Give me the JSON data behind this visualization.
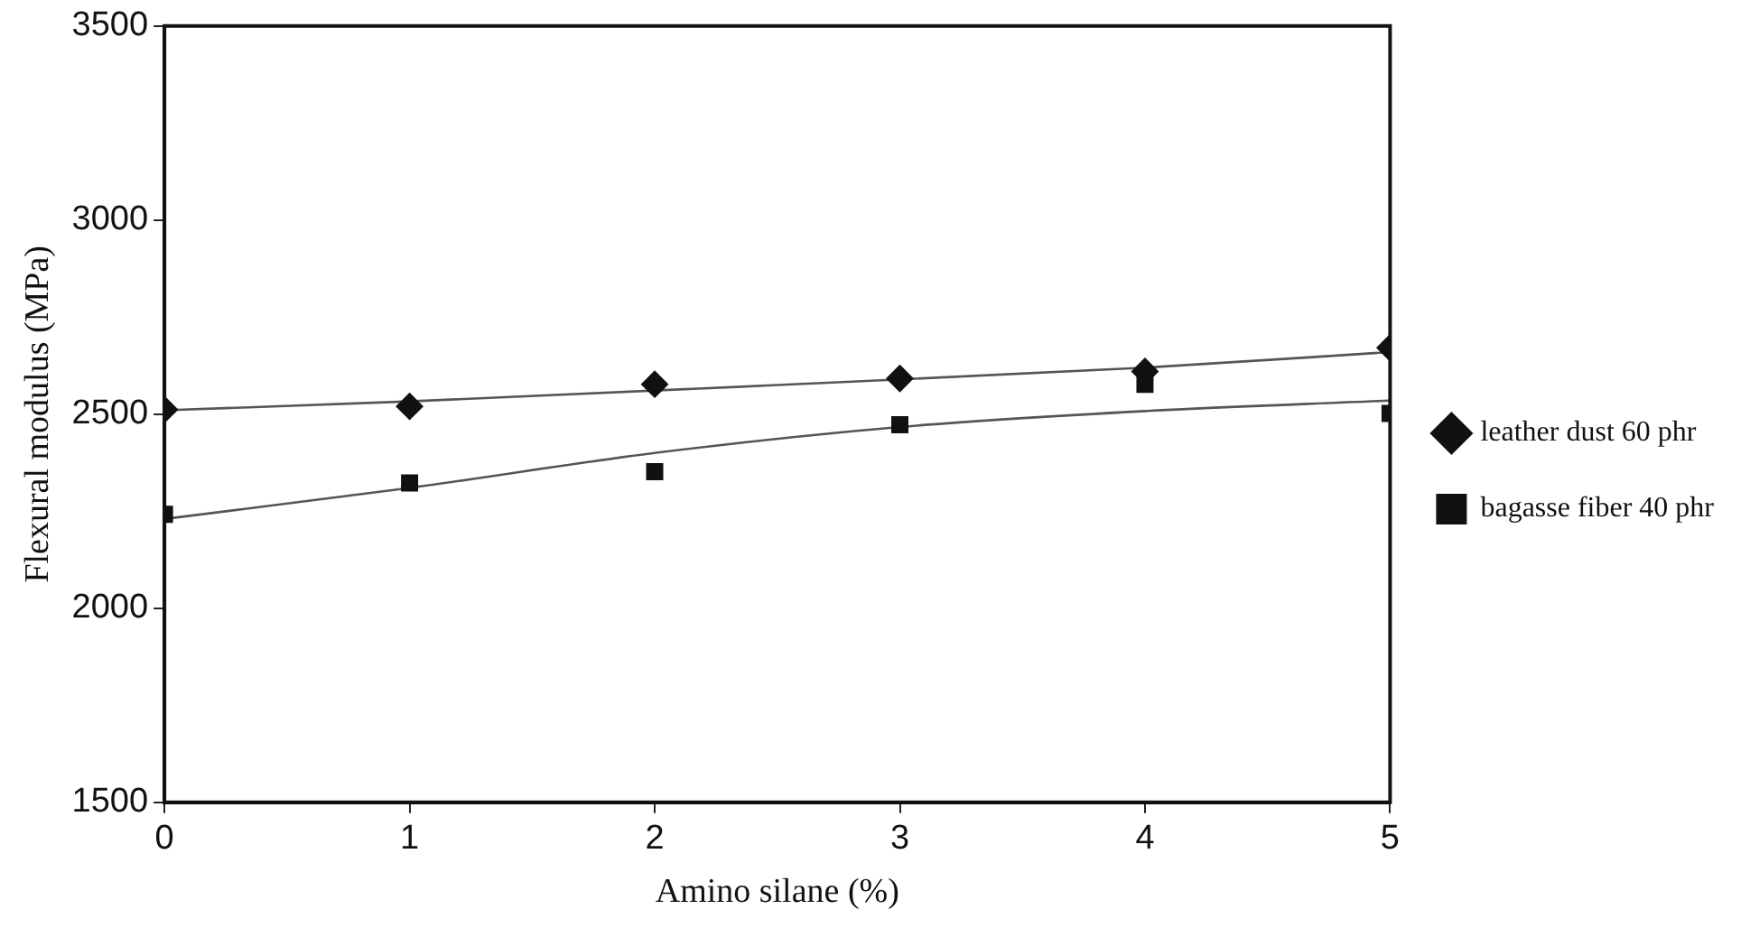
{
  "chart_data": {
    "type": "scatter",
    "xlabel": "Amino silane (%)",
    "ylabel": "Flexural modulus (MPa)",
    "xlim": [
      0,
      5
    ],
    "xticks": [
      0,
      1,
      2,
      3,
      4,
      5
    ],
    "ylim": [
      1500,
      3500
    ],
    "yticks": [
      1500,
      2000,
      2500,
      3000,
      3500
    ],
    "grid": false,
    "legend": "right",
    "series": [
      {
        "name": "leather dust 60 phr",
        "type": "scatter",
        "marker": "diamond",
        "color": "#111111",
        "x": [
          0,
          1,
          2,
          3,
          4,
          5
        ],
        "values": [
          2512,
          2520,
          2577,
          2592,
          2610,
          2671
        ]
      },
      {
        "name": "bagasse fiber 40 phr",
        "type": "scatter",
        "marker": "square",
        "color": "#111111",
        "x": [
          0,
          1,
          2,
          3,
          4,
          5
        ],
        "values": [
          2242,
          2323,
          2352,
          2473,
          2577,
          2502
        ]
      },
      {
        "type": "line",
        "marker": "none",
        "line_style": "solid",
        "color": "#555555",
        "x": [
          0,
          1,
          2.5,
          4,
          5
        ],
        "values": [
          2510,
          2533,
          2575,
          2620,
          2660
        ]
      },
      {
        "type": "line",
        "marker": "none",
        "line_style": "solid",
        "color": "#555555",
        "x": [
          0,
          1,
          2,
          3,
          4,
          5
        ],
        "values": [
          2230,
          2310,
          2400,
          2467,
          2508,
          2535
        ]
      }
    ]
  }
}
